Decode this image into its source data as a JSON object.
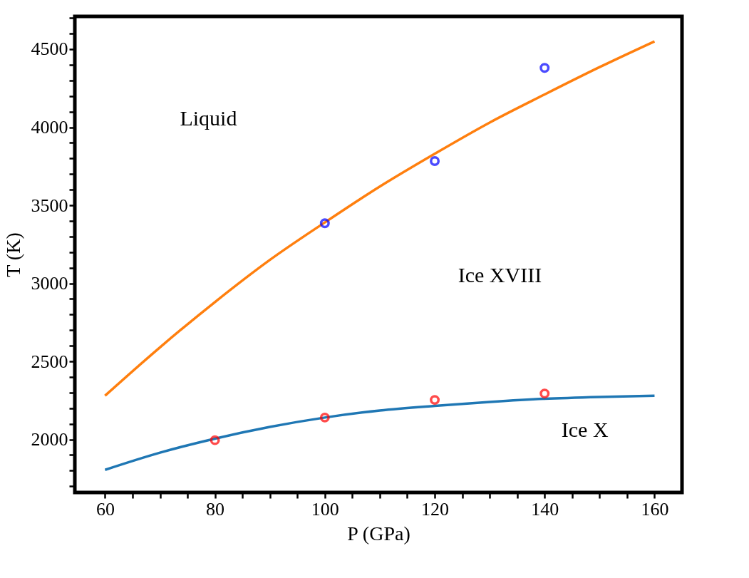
{
  "chart_data": {
    "type": "line",
    "xlabel": "P (GPa)",
    "ylabel": "T (K)",
    "xlim": [
      54.5,
      165
    ],
    "ylim": [
      1660,
      4710
    ],
    "xticks": [
      60,
      {
        "value": 65,
        "label": null
      },
      {
        "value": 70,
        "label": null
      },
      {
        "value": 75,
        "label": null
      },
      80,
      {
        "value": 85,
        "label": null
      },
      {
        "value": 90,
        "label": null
      },
      {
        "value": 95,
        "label": null
      },
      100,
      {
        "value": 105,
        "label": null
      },
      {
        "value": 110,
        "label": null
      },
      {
        "value": 115,
        "label": null
      },
      120,
      {
        "value": 125,
        "label": null
      },
      {
        "value": 130,
        "label": null
      },
      {
        "value": 135,
        "label": null
      },
      140,
      {
        "value": 145,
        "label": null
      },
      {
        "value": 150,
        "label": null
      },
      {
        "value": 155,
        "label": null
      },
      160
    ],
    "yticks": [
      {
        "value": 1700,
        "label": null
      },
      {
        "value": 1800,
        "label": null
      },
      {
        "value": 1900,
        "label": null
      },
      2000,
      {
        "value": 2100,
        "label": null
      },
      {
        "value": 2200,
        "label": null
      },
      {
        "value": 2300,
        "label": null
      },
      {
        "value": 2400,
        "label": null
      },
      2500,
      {
        "value": 2600,
        "label": null
      },
      {
        "value": 2700,
        "label": null
      },
      {
        "value": 2800,
        "label": null
      },
      {
        "value": 2900,
        "label": null
      },
      3000,
      {
        "value": 3100,
        "label": null
      },
      {
        "value": 3200,
        "label": null
      },
      {
        "value": 3300,
        "label": null
      },
      {
        "value": 3400,
        "label": null
      },
      3500,
      {
        "value": 3600,
        "label": null
      },
      {
        "value": 3700,
        "label": null
      },
      {
        "value": 3800,
        "label": null
      },
      {
        "value": 3900,
        "label": null
      },
      4000,
      {
        "value": 4100,
        "label": null
      },
      {
        "value": 4200,
        "label": null
      },
      {
        "value": 4300,
        "label": null
      },
      {
        "value": 4400,
        "label": null
      },
      4500,
      {
        "value": 4600,
        "label": null
      },
      {
        "value": 4700,
        "label": null
      }
    ],
    "grid": false,
    "series": [
      {
        "type": "line",
        "color": "#ff7f0e",
        "x": [
          60,
          70,
          80,
          90,
          100,
          110,
          120,
          130,
          140,
          150,
          160
        ],
        "values": [
          2280,
          2590,
          2880,
          3150,
          3390,
          3620,
          3830,
          4030,
          4210,
          4385,
          4550
        ]
      },
      {
        "type": "line",
        "color": "#1f77b4",
        "x": [
          60,
          70,
          80,
          90,
          100,
          110,
          120,
          130,
          140,
          150,
          160
        ],
        "values": [
          1805,
          1915,
          2005,
          2080,
          2140,
          2185,
          2215,
          2240,
          2260,
          2272,
          2280
        ]
      },
      {
        "type": "scatter",
        "marker": "circle",
        "color": "#0000ff",
        "x": [
          100,
          120,
          140
        ],
        "values": [
          3385,
          3783,
          4380
        ]
      },
      {
        "type": "scatter",
        "marker": "circle",
        "color": "#ff0000",
        "x": [
          80,
          100,
          120,
          140
        ],
        "values": [
          1995,
          2140,
          2253,
          2294
        ]
      }
    ],
    "annotations": [
      "Liquid",
      "Ice XVIII",
      "Ice X"
    ]
  }
}
